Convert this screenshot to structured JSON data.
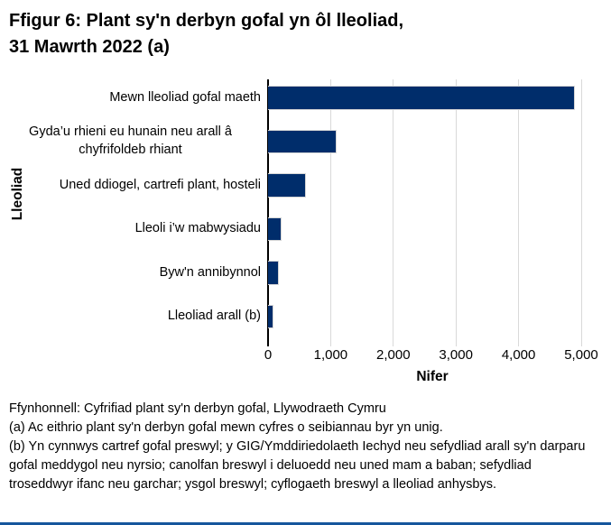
{
  "figure": {
    "title_line1": "Ffigur 6: Plant sy'n derbyn gofal yn ôl lleoliad,",
    "title_line2": "31 Mawrth 2022 (a)"
  },
  "chart_data": {
    "type": "bar",
    "orientation": "horizontal",
    "title": "Ffigur 6: Plant sy'n derbyn gofal yn ôl lleoliad, 31 Mawrth 2022 (a)",
    "categories": [
      "Mewn lleoliad gofal maeth",
      "Gyda’u rhieni eu hunain neu arall â chyfrifoldeb rhiant",
      "Uned ddiogel, cartrefi plant, hosteli",
      "Lleoli i’w mabwysiadu",
      "Byw'n annibynnol",
      "Lleoliad arall (b)"
    ],
    "values": [
      4900,
      1100,
      600,
      220,
      180,
      80
    ],
    "xlabel": "Nifer",
    "ylabel": "Lleoliad",
    "xlim": [
      0,
      5000
    ],
    "xticks": [
      0,
      1000,
      2000,
      3000,
      4000,
      5000
    ],
    "xtick_labels": [
      "0",
      "1,000",
      "2,000",
      "3,000",
      "4,000",
      "5,000"
    ],
    "grid": "vertical gridlines at every 1,000, light gray",
    "legend": "none",
    "colors": {
      "bar": "#002d6b",
      "gridline": "#d9d9d9",
      "axis": "#000000",
      "text": "#000000",
      "background": "#ffffff",
      "bottom_rule": "#15569c"
    }
  },
  "footer": {
    "source": "Ffynhonnell: Cyfrifiad plant sy'n derbyn gofal, Llywodraeth Cymru",
    "note_a": "(a) Ac eithrio plant sy'n derbyn gofal mewn cyfres o seibiannau byr yn unig.",
    "note_b": "(b) Yn cynnwys cartref gofal preswyl; y GIG/Ymddiriedolaeth Iechyd neu sefydliad arall sy'n darparu gofal meddygol neu nyrsio; canolfan breswyl i deluoedd neu uned mam a baban; sefydliad troseddwyr ifanc neu garchar; ysgol breswyl; cyflogaeth breswyl a lleoliad anhysbys."
  }
}
